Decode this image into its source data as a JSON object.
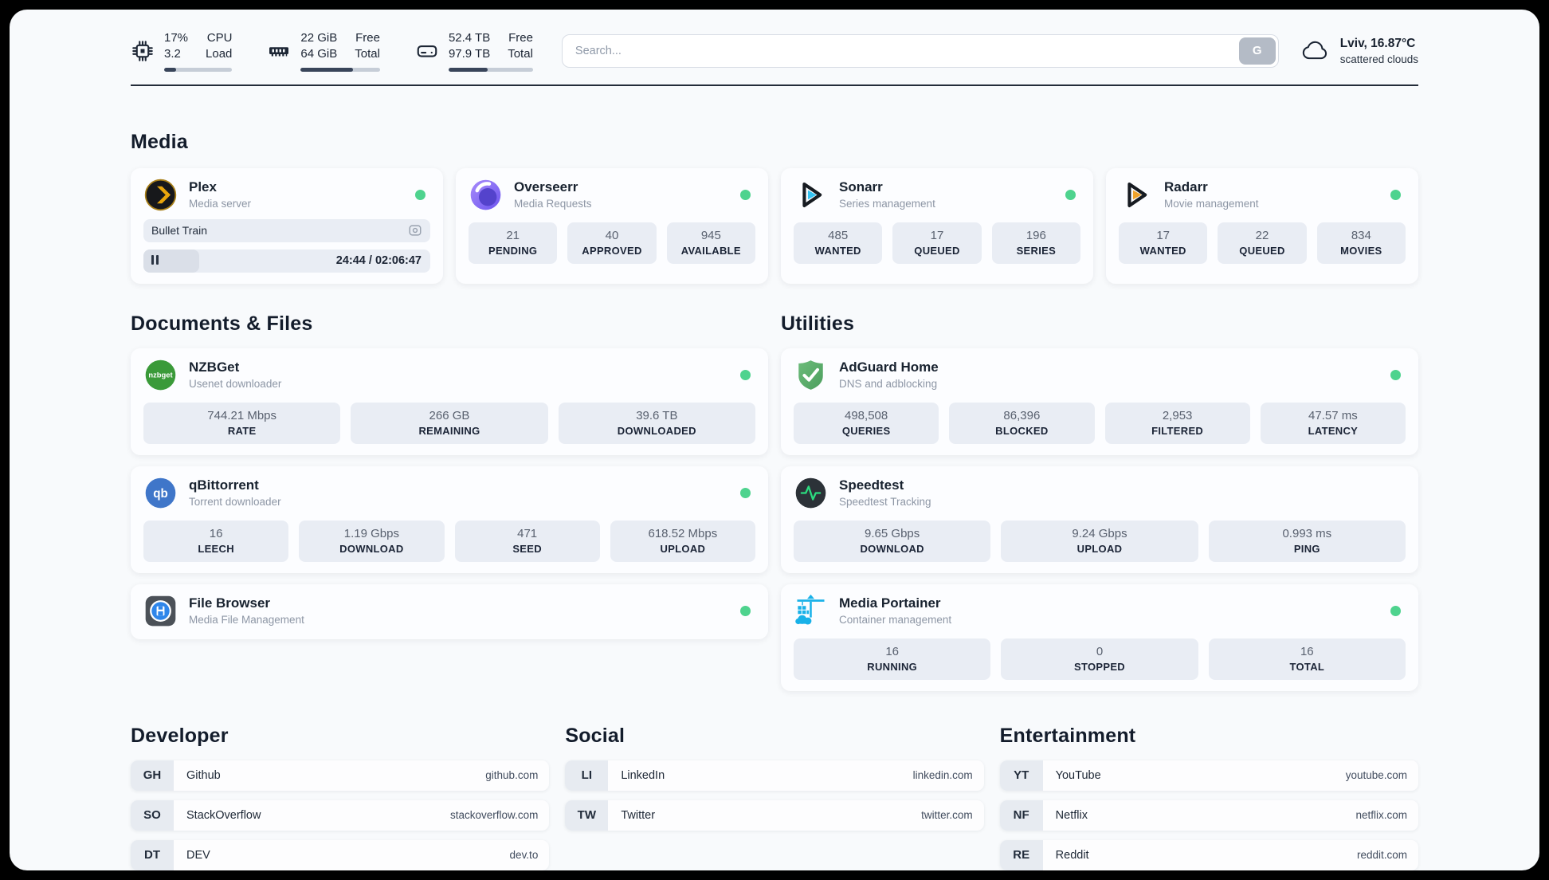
{
  "topbar": {
    "monitors": [
      {
        "icon": "cpu-icon",
        "value_top": "17%",
        "value_bottom": "3.2",
        "label_top": "CPU",
        "label_bottom": "Load",
        "usage_pct": 17
      },
      {
        "icon": "ram-icon",
        "value_top": "22 GiB",
        "value_bottom": "64 GiB",
        "label_top": "Free",
        "label_bottom": "Total",
        "usage_pct": 66
      },
      {
        "icon": "disk-icon",
        "value_top": "52.4 TB",
        "value_bottom": "97.9 TB",
        "label_top": "Free",
        "label_bottom": "Total",
        "usage_pct": 46
      }
    ],
    "search": {
      "placeholder": "Search...",
      "button_label": "G"
    },
    "weather": {
      "summary": "Lviv, 16.87°C",
      "condition": "scattered clouds"
    }
  },
  "sections": {
    "media": {
      "title": "Media",
      "plex": {
        "name": "Plex",
        "subtitle": "Media server",
        "now_playing": "Bullet Train",
        "time": "24:44 / 02:06:47",
        "progress_pct": 19.5
      },
      "cards": [
        {
          "name": "Overseerr",
          "subtitle": "Media Requests",
          "stats": [
            {
              "value": "21",
              "label": "PENDING"
            },
            {
              "value": "40",
              "label": "APPROVED"
            },
            {
              "value": "945",
              "label": "AVAILABLE"
            }
          ]
        },
        {
          "name": "Sonarr",
          "subtitle": "Series management",
          "stats": [
            {
              "value": "485",
              "label": "WANTED"
            },
            {
              "value": "17",
              "label": "QUEUED"
            },
            {
              "value": "196",
              "label": "SERIES"
            }
          ]
        },
        {
          "name": "Radarr",
          "subtitle": "Movie management",
          "stats": [
            {
              "value": "17",
              "label": "WANTED"
            },
            {
              "value": "22",
              "label": "QUEUED"
            },
            {
              "value": "834",
              "label": "MOVIES"
            }
          ]
        }
      ]
    },
    "documents": {
      "title": "Documents & Files",
      "cards": [
        {
          "name": "NZBGet",
          "subtitle": "Usenet downloader",
          "stats": [
            {
              "value": "744.21 Mbps",
              "label": "RATE"
            },
            {
              "value": "266 GB",
              "label": "REMAINING"
            },
            {
              "value": "39.6 TB",
              "label": "DOWNLOADED"
            }
          ]
        },
        {
          "name": "qBittorrent",
          "subtitle": "Torrent downloader",
          "stats": [
            {
              "value": "16",
              "label": "LEECH"
            },
            {
              "value": "1.19 Gbps",
              "label": "DOWNLOAD"
            },
            {
              "value": "471",
              "label": "SEED"
            },
            {
              "value": "618.52 Mbps",
              "label": "UPLOAD"
            }
          ]
        },
        {
          "name": "File Browser",
          "subtitle": "Media File Management",
          "stats": []
        }
      ]
    },
    "utilities": {
      "title": "Utilities",
      "cards": [
        {
          "name": "AdGuard Home",
          "subtitle": "DNS and adblocking",
          "stats": [
            {
              "value": "498,508",
              "label": "QUERIES"
            },
            {
              "value": "86,396",
              "label": "BLOCKED"
            },
            {
              "value": "2,953",
              "label": "FILTERED"
            },
            {
              "value": "47.57 ms",
              "label": "LATENCY"
            }
          ]
        },
        {
          "name": "Speedtest",
          "subtitle": "Speedtest Tracking",
          "stats": [
            {
              "value": "9.65 Gbps",
              "label": "DOWNLOAD"
            },
            {
              "value": "9.24 Gbps",
              "label": "UPLOAD"
            },
            {
              "value": "0.993 ms",
              "label": "PING"
            }
          ]
        },
        {
          "name": "Media Portainer",
          "subtitle": "Container management",
          "stats": [
            {
              "value": "16",
              "label": "RUNNING"
            },
            {
              "value": "0",
              "label": "STOPPED"
            },
            {
              "value": "16",
              "label": "TOTAL"
            }
          ]
        }
      ]
    },
    "bookmarks": [
      {
        "title": "Developer",
        "links": [
          {
            "abbr": "GH",
            "name": "Github",
            "url": "github.com"
          },
          {
            "abbr": "SO",
            "name": "StackOverflow",
            "url": "stackoverflow.com"
          },
          {
            "abbr": "DT",
            "name": "DEV",
            "url": "dev.to"
          }
        ]
      },
      {
        "title": "Social",
        "links": [
          {
            "abbr": "LI",
            "name": "LinkedIn",
            "url": "linkedin.com"
          },
          {
            "abbr": "TW",
            "name": "Twitter",
            "url": "twitter.com"
          }
        ]
      },
      {
        "title": "Entertainment",
        "links": [
          {
            "abbr": "YT",
            "name": "YouTube",
            "url": "youtube.com"
          },
          {
            "abbr": "NF",
            "name": "Netflix",
            "url": "netflix.com"
          },
          {
            "abbr": "RE",
            "name": "Reddit",
            "url": "reddit.com"
          }
        ]
      }
    ]
  },
  "colors": {
    "status_online": "#4ed38e",
    "accent_dark": "#1d2635"
  }
}
